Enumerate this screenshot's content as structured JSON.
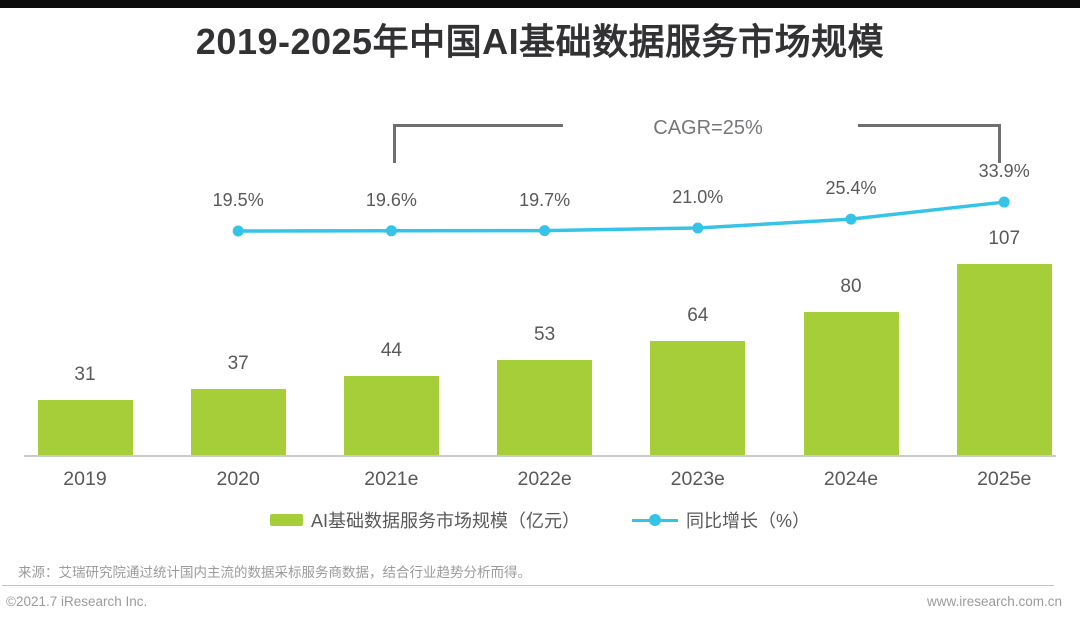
{
  "title": "2019-2025年中国AI基础数据服务市场规模",
  "annotation": {
    "cagr_label": "CAGR=25%"
  },
  "chart_data": {
    "type": "bar",
    "title": "2019-2025年中国AI基础数据服务市场规模",
    "categories": [
      "2019",
      "2020",
      "2021e",
      "2022e",
      "2023e",
      "2024e",
      "2025e"
    ],
    "series": [
      {
        "name": "AI基础数据服务市场规模（亿元）",
        "type": "bar",
        "color": "#A6CE39",
        "values": [
          31,
          37,
          44,
          53,
          64,
          80,
          107
        ]
      },
      {
        "name": "同比增长（%）",
        "type": "line",
        "color": "#35C4E8",
        "values": [
          null,
          19.5,
          19.6,
          19.7,
          21.0,
          25.4,
          33.9
        ],
        "labels": [
          "",
          "19.5%",
          "19.6%",
          "19.7%",
          "21.0%",
          "25.4%",
          "33.9%"
        ]
      }
    ],
    "annotations": [
      {
        "text": "CAGR=25%",
        "span": [
          "2021e",
          "2025e"
        ]
      }
    ],
    "ylim": [
      0,
      120
    ],
    "grid": false,
    "value_labels_shown": true,
    "legend_position": "bottom"
  },
  "legend": {
    "bar_label": "AI基础数据服务市场规模（亿元）",
    "line_label": "同比增长（%）"
  },
  "footer": {
    "source": "来源：艾瑞研究院通过统计国内主流的数据采标服务商数据，结合行业趋势分析而得。",
    "copyright": "©2021.7 iResearch Inc.",
    "website": "www.iresearch.com.cn"
  },
  "colors": {
    "bar": "#A6CE39",
    "line": "#35C4E8",
    "label": "#58595B",
    "bracket": "#6E6F71"
  }
}
